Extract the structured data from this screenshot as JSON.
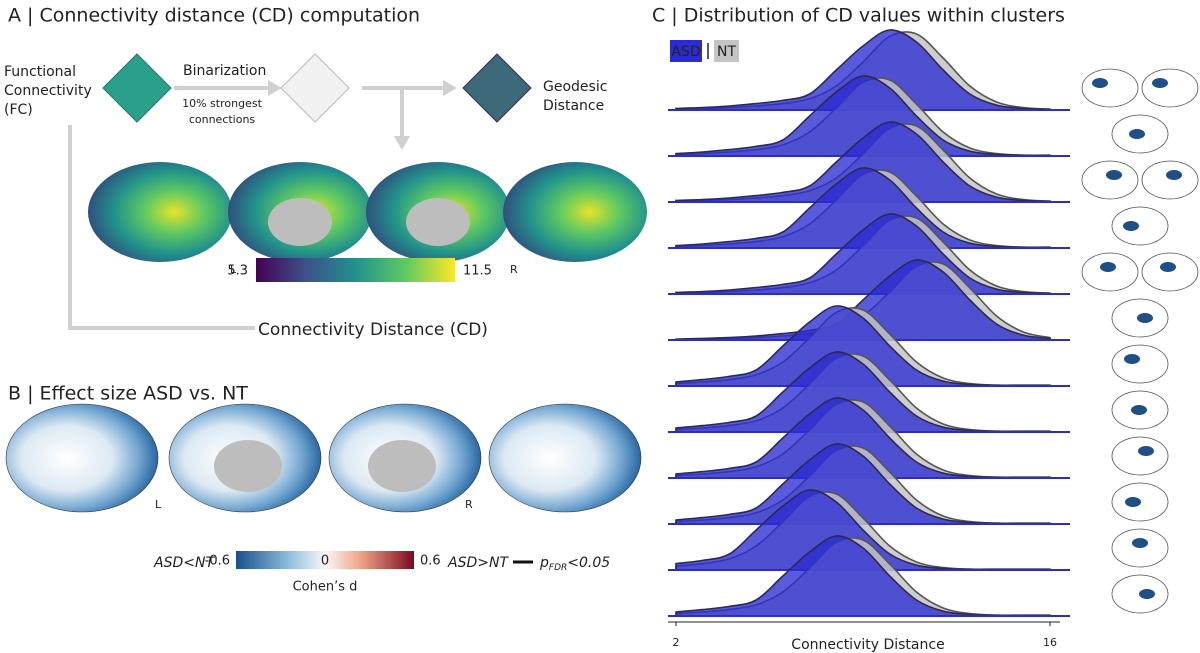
{
  "panel_a": {
    "title": "A | Connectivity distance (CD) computation",
    "steps": {
      "fc": [
        "Functional",
        "Connectivity",
        "(FC)"
      ],
      "binarization": "Binarization",
      "threshold": [
        "10% strongest",
        "connections"
      ],
      "geodesic": [
        "Geodesic",
        "Distance"
      ]
    },
    "hemisphere_labels": [
      "L",
      "R"
    ],
    "colorbar": {
      "lim": [
        5.3,
        11.5
      ],
      "ticks": [
        5.3,
        11.5
      ],
      "label": "Connectivity Distance (CD)"
    }
  },
  "panel_b": {
    "title": "B | Effect size ASD vs. NT",
    "hemisphere_labels": [
      "L",
      "R"
    ],
    "colorbar": {
      "lim": [
        -0.6,
        0.6
      ],
      "ticks": [
        -0.6,
        0,
        0.6
      ],
      "label": "Cohen’s d",
      "left_label": "ASD<NT",
      "right_label": "ASD>NT"
    },
    "significance": [
      "p",
      "FDR",
      "<0.05"
    ]
  },
  "chart_data": {
    "type": "ridgeline",
    "title": "C | Distribution of CD values within clusters",
    "xlabel": "Connectivity Distance",
    "x": [
      2,
      3,
      4,
      5,
      6,
      7,
      8,
      9,
      10,
      11,
      12,
      13,
      14,
      15,
      16
    ],
    "xlim": [
      2,
      16
    ],
    "xticks": [
      2,
      16
    ],
    "series": [
      {
        "name": "ASD",
        "color": "#2b2bd4",
        "values": [
          [
            0.02,
            0.03,
            0.05,
            0.08,
            0.12,
            0.2,
            0.5,
            0.8,
            1,
            0.85,
            0.5,
            0.2,
            0.06,
            0.02,
            0.01
          ],
          [
            0.03,
            0.05,
            0.08,
            0.12,
            0.2,
            0.5,
            0.8,
            1,
            0.85,
            0.5,
            0.2,
            0.06,
            0.02,
            0.01,
            0.01
          ],
          [
            0.02,
            0.03,
            0.05,
            0.08,
            0.12,
            0.2,
            0.5,
            0.8,
            1,
            0.85,
            0.5,
            0.2,
            0.06,
            0.02,
            0.01
          ],
          [
            0.03,
            0.05,
            0.08,
            0.12,
            0.2,
            0.5,
            0.8,
            1,
            0.85,
            0.5,
            0.2,
            0.06,
            0.02,
            0.01,
            0.01
          ],
          [
            0.02,
            0.03,
            0.05,
            0.08,
            0.12,
            0.2,
            0.5,
            0.8,
            1,
            0.85,
            0.5,
            0.2,
            0.06,
            0.02,
            0.01
          ],
          [
            0.01,
            0.02,
            0.03,
            0.05,
            0.08,
            0.12,
            0.2,
            0.5,
            0.8,
            1,
            0.85,
            0.5,
            0.2,
            0.06,
            0.02
          ],
          [
            0.05,
            0.08,
            0.12,
            0.2,
            0.5,
            0.8,
            1,
            0.85,
            0.5,
            0.2,
            0.06,
            0.02,
            0.01,
            0.01,
            0.01
          ],
          [
            0.05,
            0.08,
            0.12,
            0.2,
            0.5,
            0.8,
            1,
            0.85,
            0.5,
            0.2,
            0.06,
            0.02,
            0.01,
            0.01,
            0.01
          ],
          [
            0.05,
            0.08,
            0.12,
            0.2,
            0.5,
            0.8,
            1,
            0.85,
            0.5,
            0.2,
            0.06,
            0.02,
            0.01,
            0.01,
            0.01
          ],
          [
            0.05,
            0.08,
            0.12,
            0.2,
            0.5,
            0.8,
            1,
            0.85,
            0.5,
            0.2,
            0.06,
            0.02,
            0.01,
            0.01,
            0.01
          ],
          [
            0.08,
            0.12,
            0.2,
            0.5,
            0.8,
            1,
            0.85,
            0.5,
            0.2,
            0.06,
            0.02,
            0.01,
            0.01,
            0.01,
            0.01
          ],
          [
            0.05,
            0.08,
            0.12,
            0.2,
            0.5,
            0.8,
            1,
            0.85,
            0.5,
            0.2,
            0.06,
            0.02,
            0.01,
            0.01,
            0.01
          ]
        ]
      },
      {
        "name": "NT",
        "color": "#c4c4c4",
        "values": [
          [
            0.01,
            0.02,
            0.03,
            0.05,
            0.08,
            0.14,
            0.3,
            0.6,
            0.92,
            0.95,
            0.65,
            0.3,
            0.1,
            0.03,
            0.01
          ],
          [
            0.02,
            0.03,
            0.05,
            0.08,
            0.14,
            0.3,
            0.6,
            0.92,
            0.95,
            0.65,
            0.3,
            0.1,
            0.03,
            0.01,
            0
          ],
          [
            0.01,
            0.02,
            0.03,
            0.05,
            0.08,
            0.14,
            0.3,
            0.6,
            0.92,
            0.95,
            0.65,
            0.3,
            0.1,
            0.03,
            0.01
          ],
          [
            0.02,
            0.03,
            0.05,
            0.08,
            0.14,
            0.3,
            0.6,
            0.92,
            0.95,
            0.65,
            0.3,
            0.1,
            0.03,
            0.01,
            0
          ],
          [
            0.01,
            0.02,
            0.03,
            0.05,
            0.08,
            0.14,
            0.3,
            0.6,
            0.92,
            0.95,
            0.65,
            0.3,
            0.1,
            0.03,
            0.01
          ],
          [
            0,
            0.01,
            0.02,
            0.03,
            0.05,
            0.08,
            0.14,
            0.3,
            0.6,
            0.92,
            0.95,
            0.65,
            0.3,
            0.1,
            0.03
          ],
          [
            0.03,
            0.05,
            0.08,
            0.14,
            0.3,
            0.6,
            0.92,
            0.95,
            0.65,
            0.3,
            0.1,
            0.03,
            0.01,
            0,
            0
          ],
          [
            0.03,
            0.05,
            0.08,
            0.14,
            0.3,
            0.6,
            0.92,
            0.95,
            0.65,
            0.3,
            0.1,
            0.03,
            0.01,
            0,
            0
          ],
          [
            0.03,
            0.05,
            0.08,
            0.14,
            0.3,
            0.6,
            0.92,
            0.95,
            0.65,
            0.3,
            0.1,
            0.03,
            0.01,
            0,
            0
          ],
          [
            0.03,
            0.05,
            0.08,
            0.14,
            0.3,
            0.6,
            0.92,
            0.95,
            0.65,
            0.3,
            0.1,
            0.03,
            0.01,
            0,
            0
          ],
          [
            0.05,
            0.08,
            0.14,
            0.3,
            0.6,
            0.92,
            0.95,
            0.65,
            0.3,
            0.1,
            0.03,
            0.01,
            0,
            0,
            0
          ],
          [
            0.03,
            0.05,
            0.08,
            0.14,
            0.3,
            0.6,
            0.92,
            0.95,
            0.65,
            0.3,
            0.1,
            0.03,
            0.01,
            0,
            0
          ]
        ]
      }
    ]
  }
}
